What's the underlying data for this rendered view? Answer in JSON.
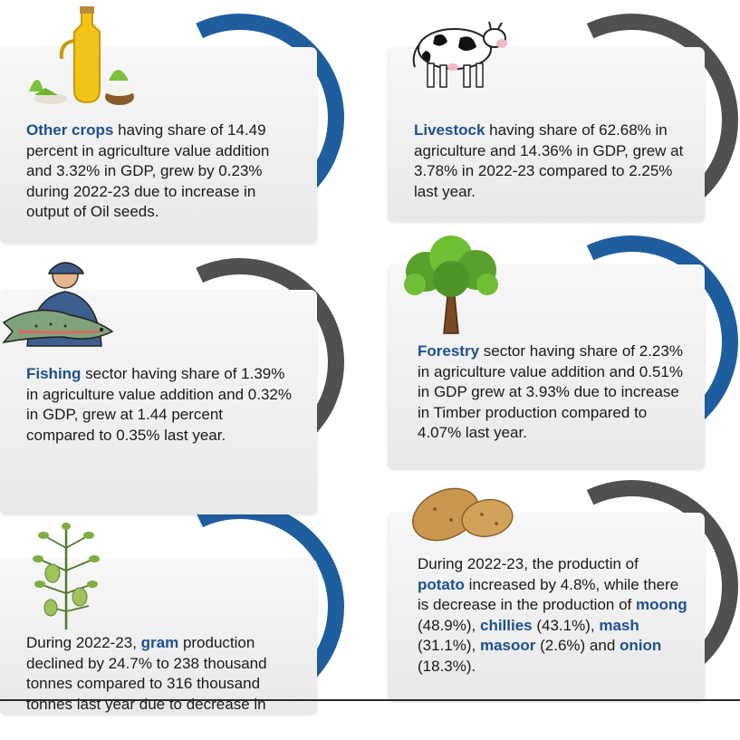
{
  "cards": {
    "other_crops": {
      "highlight": "Other crops",
      "text": " having share of 14.49 percent in agriculture value addition and 3.32% in GDP, grew by 0.23% during 2022-23  due to increase in output of Oil seeds."
    },
    "livestock": {
      "highlight": "Livestock",
      "text": " having share of 62.68% in agriculture and 14.36% in GDP, grew at 3.78% in 2022-23 compared to 2.25% last year."
    },
    "fishing": {
      "highlight": "Fishing",
      "text": " sector having share of 1.39% in agriculture value addition and 0.32% in GDP, grew at 1.44 percent compared to 0.35% last year."
    },
    "forestry": {
      "highlight": "Forestry",
      "text": " sector having share of 2.23% in agriculture value addition and 0.51% in GDP grew at 3.93% due to increase in Timber production compared to 4.07% last year."
    },
    "potato": {
      "t1": "During 2022-23, the productin of ",
      "h1": "potato",
      "t2": " increased by 4.8%, while there is decrease in the production of ",
      "h2": "moong",
      "t3": " (48.9%), ",
      "h3": "chillies",
      "t4": " (43.1%), ",
      "h4": "mash",
      "t5": " (31.1%), ",
      "h5": "masoor",
      "t6": " (2.6%) and ",
      "h6": "onion",
      "t7": " (18.3%)."
    },
    "gram": {
      "t1": "During 2022-23, ",
      "h1": "gram",
      "t2": " production declined by 24.7% to 238 thousand tonnes compared to 316 thousand tonnes last year due to decrease in"
    }
  },
  "colors": {
    "highlight": "#1f4f8f",
    "arc_blue": "#1f5e9e",
    "arc_gray": "#505050"
  },
  "icons": [
    "oil-bottle-icon",
    "cow-icon",
    "fisherman-icon",
    "tree-icon",
    "potato-icon",
    "gram-plant-icon"
  ]
}
